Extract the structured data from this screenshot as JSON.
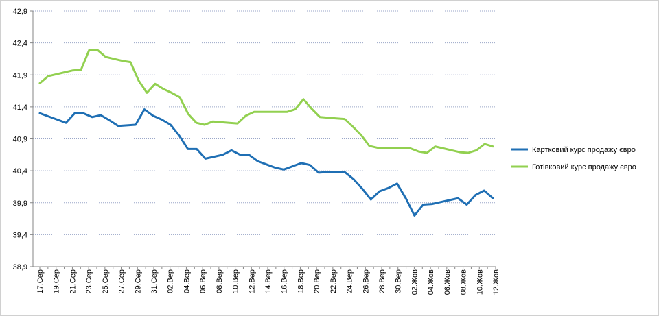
{
  "chart_data": {
    "type": "line",
    "ylim": [
      38.9,
      42.9
    ],
    "y_ticks": [
      "38,9",
      "39,4",
      "39,9",
      "40,4",
      "40,9",
      "41,4",
      "41,9",
      "42,4",
      "42,9"
    ],
    "x_tick_labels": [
      "17.Сер",
      "19.Сер",
      "21.Сер",
      "23.Сер",
      "25.Сер",
      "27.Сер",
      "29.Сер",
      "31.Сер",
      "02.Вер",
      "04.Вер",
      "06.Вер",
      "08.Вер",
      "10.Вер",
      "12.Вер",
      "14.Вер",
      "16.Вер",
      "18.Вер",
      "20.Вер",
      "22.Вер",
      "24.Вер",
      "26.Вер",
      "28.Вер",
      "30.Вер",
      "02.Жов",
      "04.Жов",
      "06.Жов",
      "08.Жов",
      "10.Жов",
      "12.Жов"
    ],
    "grid": "horizontal dotted",
    "legend_position": "right",
    "series": [
      {
        "name": "Картковий курс продажу євро",
        "color": "#1f6fb4",
        "values": [
          41.3,
          41.25,
          41.2,
          41.15,
          41.3,
          41.3,
          41.24,
          41.27,
          41.19,
          41.1,
          41.11,
          41.12,
          41.36,
          41.26,
          41.2,
          41.12,
          40.95,
          40.74,
          40.74,
          40.59,
          40.62,
          40.65,
          40.72,
          40.65,
          40.65,
          40.55,
          40.5,
          40.45,
          40.42,
          40.47,
          40.52,
          40.49,
          40.37,
          40.38,
          40.38,
          40.38,
          40.27,
          40.12,
          39.95,
          40.08,
          40.13,
          40.2,
          39.97,
          39.7,
          39.87,
          39.88,
          39.91,
          39.94,
          39.97,
          39.87,
          40.02,
          40.09,
          39.97
        ]
      },
      {
        "name": "Готівковий курс продажу євро",
        "color": "#92d050",
        "values": [
          41.77,
          41.88,
          41.91,
          41.94,
          41.97,
          41.98,
          42.29,
          42.29,
          42.18,
          42.15,
          42.12,
          42.1,
          41.81,
          41.62,
          41.76,
          41.68,
          41.62,
          41.55,
          41.29,
          41.15,
          41.12,
          41.17,
          41.16,
          41.15,
          41.14,
          41.26,
          41.32,
          41.32,
          41.32,
          41.32,
          41.32,
          41.36,
          41.52,
          41.37,
          41.24,
          41.23,
          41.22,
          41.21,
          41.09,
          40.96,
          40.79,
          40.76,
          40.76,
          40.75,
          40.75,
          40.75,
          40.7,
          40.68,
          40.78,
          40.75,
          40.72,
          40.69,
          40.68,
          40.72,
          40.82,
          40.78
        ]
      }
    ]
  }
}
